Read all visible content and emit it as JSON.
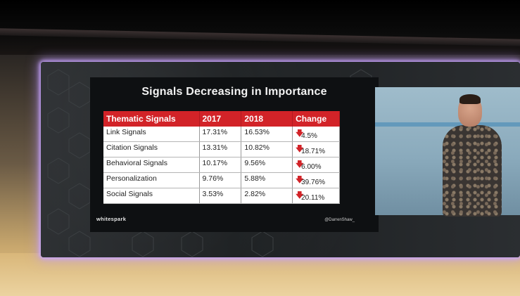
{
  "slide": {
    "title": "Signals Decreasing in Importance",
    "table": {
      "headers": [
        "Thematic Signals",
        "2017",
        "2018",
        "Change"
      ],
      "rows": [
        {
          "signal": "Link Signals",
          "y2017": "17.31%",
          "y2018": "16.53%",
          "arrow": "down-arrow",
          "change": "4.5%"
        },
        {
          "signal": "Citation Signals",
          "y2017": "13.31%",
          "y2018": "10.82%",
          "arrow": "down-arrow",
          "change": "18.71%"
        },
        {
          "signal": "Behavioral Signals",
          "y2017": "10.17%",
          "y2018": "9.56%",
          "arrow": "down-arrow",
          "change": "6.00%"
        },
        {
          "signal": "Personalization",
          "y2017": "9.76%",
          "y2018": "5.88%",
          "arrow": "down-arrow",
          "change": "39.76%"
        },
        {
          "signal": "Social Signals",
          "y2017": "3.53%",
          "y2018": "2.82%",
          "arrow": "down-arrow",
          "change": "20.11%"
        }
      ]
    },
    "logo": "whitespark",
    "handle": "@DarrenShaw_",
    "colors": {
      "header": "#d22328",
      "arrow": "#d22328",
      "glow": "#c9a6ff"
    }
  }
}
